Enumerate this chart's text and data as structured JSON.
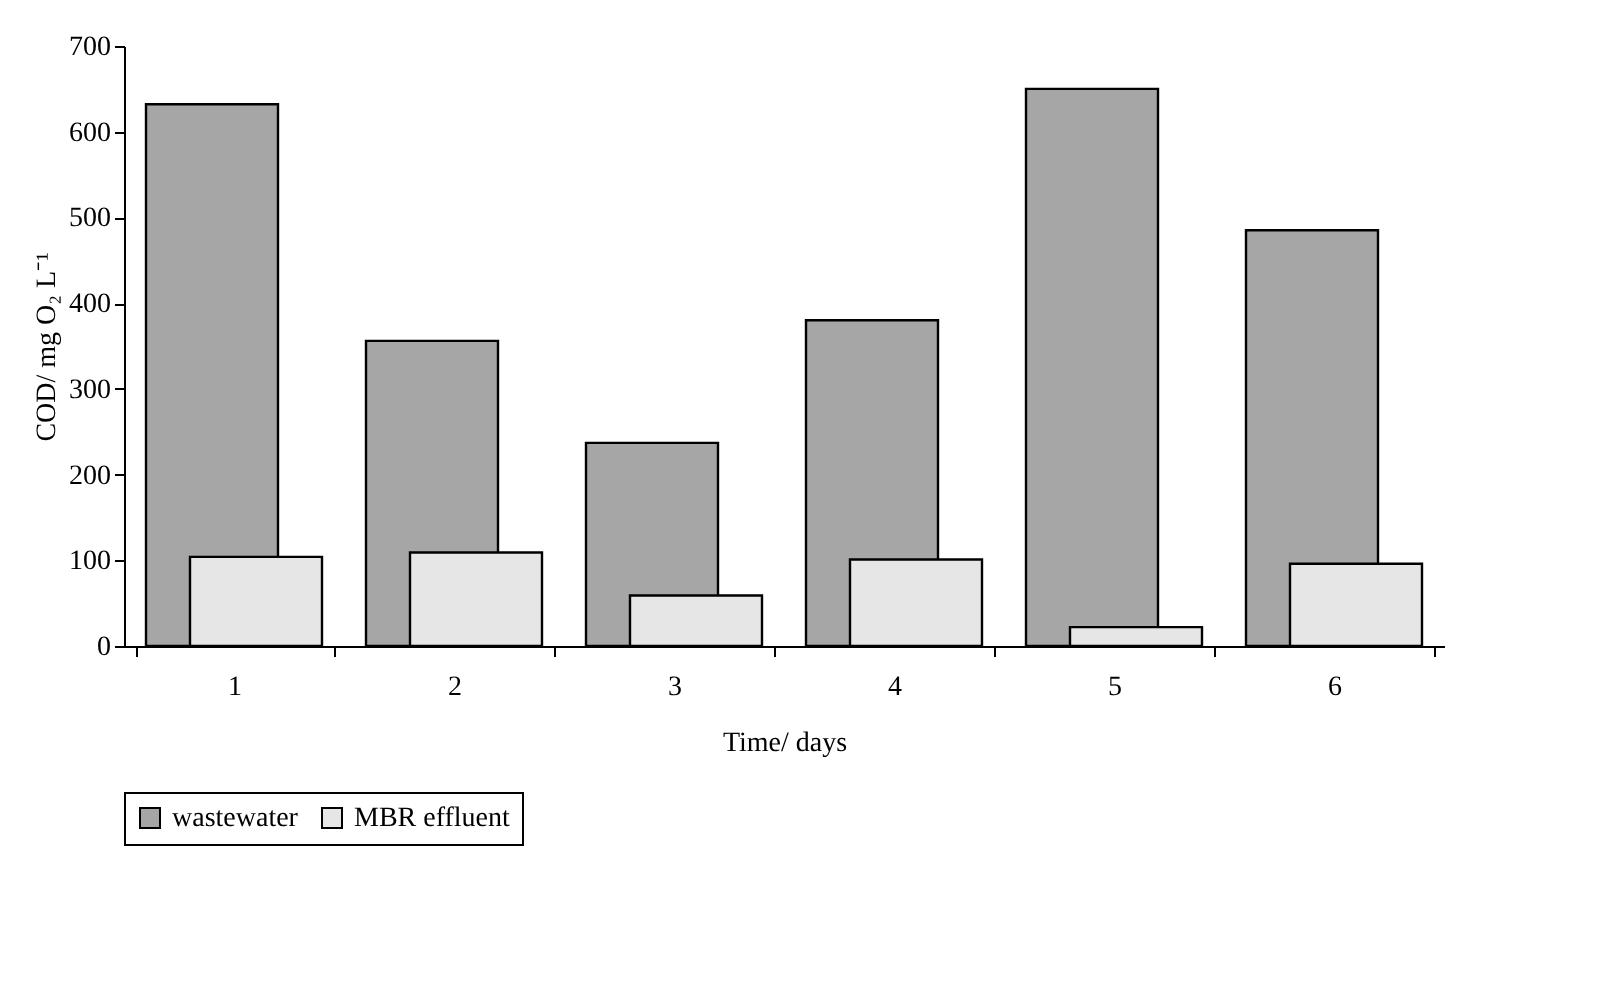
{
  "chart_data": {
    "type": "bar",
    "xlabel": "Time/ days",
    "ylabel": "COD/ mg O₂ L⁻¹",
    "categories": [
      "1",
      "2",
      "3",
      "4",
      "5",
      "6"
    ],
    "series": [
      {
        "name": "wastewater",
        "color": "#a6a6a6",
        "values": [
          632,
          356,
          237,
          380,
          650,
          485
        ]
      },
      {
        "name": "MBR effluent",
        "color": "#e6e6e6",
        "values": [
          104,
          109,
          59,
          101,
          22,
          96
        ]
      }
    ],
    "ylim": [
      0,
      700
    ],
    "yticks": [
      0,
      100,
      200,
      300,
      400,
      500,
      600,
      700
    ],
    "grid": false,
    "legend": "bottom"
  }
}
